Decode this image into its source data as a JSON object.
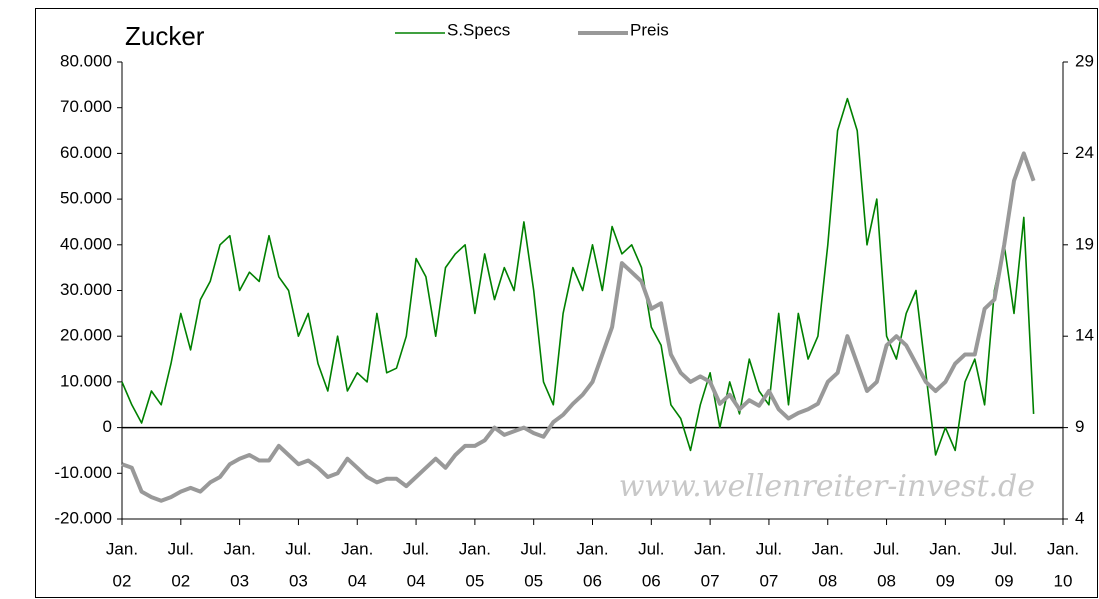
{
  "chart_data": {
    "type": "line",
    "title": "Zucker",
    "watermark": "www.wellenreiter-invest.de",
    "x": [
      "2002-01",
      "2002-02",
      "2002-03",
      "2002-04",
      "2002-05",
      "2002-06",
      "2002-07",
      "2002-08",
      "2002-09",
      "2002-10",
      "2002-11",
      "2002-12",
      "2003-01",
      "2003-02",
      "2003-03",
      "2003-04",
      "2003-05",
      "2003-06",
      "2003-07",
      "2003-08",
      "2003-09",
      "2003-10",
      "2003-11",
      "2003-12",
      "2004-01",
      "2004-02",
      "2004-03",
      "2004-04",
      "2004-05",
      "2004-06",
      "2004-07",
      "2004-08",
      "2004-09",
      "2004-10",
      "2004-11",
      "2004-12",
      "2005-01",
      "2005-02",
      "2005-03",
      "2005-04",
      "2005-05",
      "2005-06",
      "2005-07",
      "2005-08",
      "2005-09",
      "2005-10",
      "2005-11",
      "2005-12",
      "2006-01",
      "2006-02",
      "2006-03",
      "2006-04",
      "2006-05",
      "2006-06",
      "2006-07",
      "2006-08",
      "2006-09",
      "2006-10",
      "2006-11",
      "2006-12",
      "2007-01",
      "2007-02",
      "2007-03",
      "2007-04",
      "2007-05",
      "2007-06",
      "2007-07",
      "2007-08",
      "2007-09",
      "2007-10",
      "2007-11",
      "2007-12",
      "2008-01",
      "2008-02",
      "2008-03",
      "2008-04",
      "2008-05",
      "2008-06",
      "2008-07",
      "2008-08",
      "2008-09",
      "2008-10",
      "2008-11",
      "2008-12",
      "2009-01",
      "2009-02",
      "2009-03",
      "2009-04",
      "2009-05",
      "2009-06",
      "2009-07",
      "2009-08",
      "2009-09",
      "2009-10"
    ],
    "series": [
      {
        "name": "S.Specs",
        "color": "#008000",
        "axis": "y",
        "values": [
          10000,
          5000,
          1000,
          8000,
          5000,
          14000,
          25000,
          17000,
          28000,
          32000,
          40000,
          42000,
          30000,
          34000,
          32000,
          42000,
          33000,
          30000,
          20000,
          25000,
          14000,
          8000,
          20000,
          8000,
          12000,
          10000,
          25000,
          12000,
          13000,
          20000,
          37000,
          33000,
          20000,
          35000,
          38000,
          40000,
          25000,
          38000,
          28000,
          35000,
          30000,
          45000,
          30000,
          10000,
          5000,
          25000,
          35000,
          30000,
          40000,
          30000,
          44000,
          38000,
          40000,
          35000,
          22000,
          18000,
          5000,
          2000,
          -5000,
          5000,
          12000,
          0,
          10000,
          3000,
          15000,
          8000,
          5000,
          25000,
          5000,
          25000,
          15000,
          20000,
          40000,
          65000,
          72000,
          65000,
          40000,
          50000,
          20000,
          15000,
          25000,
          30000,
          12000,
          -6000,
          0,
          -5000,
          10000,
          15000,
          5000,
          30000,
          40000,
          25000,
          46000,
          3000
        ]
      },
      {
        "name": "Preis",
        "color": "#999999",
        "axis": "y2",
        "values": [
          7,
          6.8,
          5.5,
          5.2,
          5,
          5.2,
          5.5,
          5.7,
          5.5,
          6,
          6.3,
          7,
          7.3,
          7.5,
          7.2,
          7.2,
          8,
          7.5,
          7,
          7.2,
          6.8,
          6.3,
          6.5,
          7.3,
          6.8,
          6.3,
          6,
          6.2,
          6.2,
          5.8,
          6.3,
          6.8,
          7.3,
          6.8,
          7.5,
          8,
          8,
          8.3,
          9,
          8.6,
          8.8,
          9,
          8.7,
          8.5,
          9.3,
          9.7,
          10.3,
          10.8,
          11.5,
          13,
          14.5,
          18,
          17.5,
          17,
          15.5,
          15.8,
          13,
          12,
          11.5,
          11.8,
          11.5,
          10.3,
          10.8,
          10,
          10.5,
          10.2,
          11,
          10,
          9.5,
          9.8,
          10,
          10.3,
          11.5,
          12,
          14,
          12.5,
          11,
          11.5,
          13.5,
          14,
          13.5,
          12.5,
          11.5,
          11,
          11.5,
          12.5,
          13,
          13,
          15.5,
          16,
          19,
          22.5,
          24,
          22.5
        ]
      }
    ],
    "xlim": [
      "2002-01",
      "2010-01"
    ],
    "xticks": [
      {
        "value": "2002-01",
        "label": [
          "Jan.",
          "02"
        ]
      },
      {
        "value": "2002-07",
        "label": [
          "Jul.",
          "02"
        ]
      },
      {
        "value": "2003-01",
        "label": [
          "Jan.",
          "03"
        ]
      },
      {
        "value": "2003-07",
        "label": [
          "Jul.",
          "03"
        ]
      },
      {
        "value": "2004-01",
        "label": [
          "Jan.",
          "04"
        ]
      },
      {
        "value": "2004-07",
        "label": [
          "Jul.",
          "04"
        ]
      },
      {
        "value": "2005-01",
        "label": [
          "Jan.",
          "05"
        ]
      },
      {
        "value": "2005-07",
        "label": [
          "Jul.",
          "05"
        ]
      },
      {
        "value": "2006-01",
        "label": [
          "Jan.",
          "06"
        ]
      },
      {
        "value": "2006-07",
        "label": [
          "Jul.",
          "06"
        ]
      },
      {
        "value": "2007-01",
        "label": [
          "Jan.",
          "07"
        ]
      },
      {
        "value": "2007-07",
        "label": [
          "Jul.",
          "07"
        ]
      },
      {
        "value": "2008-01",
        "label": [
          "Jan.",
          "08"
        ]
      },
      {
        "value": "2008-07",
        "label": [
          "Jul.",
          "08"
        ]
      },
      {
        "value": "2009-01",
        "label": [
          "Jan.",
          "09"
        ]
      },
      {
        "value": "2009-07",
        "label": [
          "Jul.",
          "09"
        ]
      },
      {
        "value": "2010-01",
        "label": [
          "Jan.",
          "10"
        ]
      }
    ],
    "ylim": [
      -20000,
      80000
    ],
    "yticks": [
      {
        "value": -20000,
        "label": "-20.000"
      },
      {
        "value": -10000,
        "label": "-10.000"
      },
      0,
      {
        "value": 10000,
        "label": "10.000"
      },
      {
        "value": 20000,
        "label": "20.000"
      },
      {
        "value": 30000,
        "label": "30.000"
      },
      {
        "value": 40000,
        "label": "40.000"
      },
      {
        "value": 50000,
        "label": "50.000"
      },
      {
        "value": 60000,
        "label": "60.000"
      },
      {
        "value": 70000,
        "label": "70.000"
      },
      {
        "value": 80000,
        "label": "80.000"
      }
    ],
    "negative_tick_color": "#ff0000",
    "y2lim": [
      4,
      29
    ],
    "y2ticks": [
      4,
      9,
      14,
      19,
      24,
      29
    ],
    "zero_line": true
  }
}
